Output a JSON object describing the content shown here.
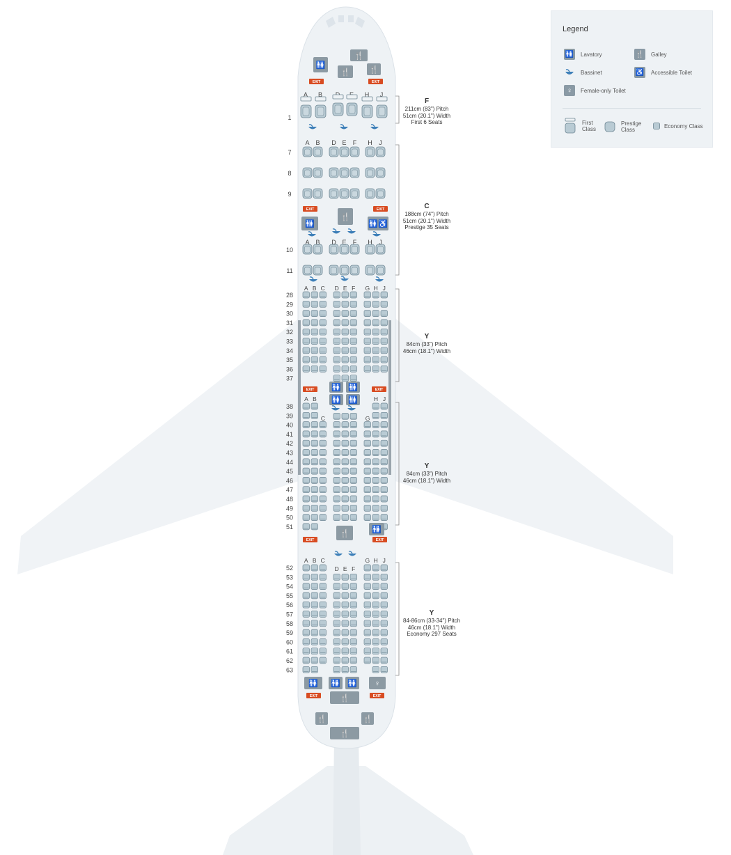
{
  "legend": {
    "title": "Legend",
    "lavatory": "Lavatory",
    "galley": "Galley",
    "bassinet": "Bassinet",
    "accessible_toilet": "Accessible Toilet",
    "female_toilet": "Female-only Toilet",
    "first_class": "First Class",
    "prestige_class": "Prestige Class",
    "economy_class": "Economy Class"
  },
  "icons": {
    "lavatory": "lavatory-icon",
    "galley": "galley-icon",
    "bassinet": "bassinet-icon",
    "accessible": "accessible-toilet-icon",
    "female": "female-toilet-icon",
    "exit": "exit-sign"
  },
  "exit_label": "EXIT",
  "colors": {
    "fuselage": "#f0f3f6",
    "seat": "#b9cbd4",
    "seat_border": "#6e8693",
    "facility": "#8c9aa3",
    "exit": "#d84c22",
    "bassinet": "#3d7fb8"
  },
  "classes": [
    {
      "code": "F",
      "lines": [
        "211cm (83\") Pitch",
        "51cm (20.1\") Width",
        "First 6 Seats"
      ]
    },
    {
      "code": "C",
      "lines": [
        "188cm (74\") Pitch",
        "51cm (20.1\") Width",
        "Prestige 35 Seats"
      ]
    },
    {
      "code": "Y",
      "lines": [
        "84cm (33\") Pitch",
        "46cm (18.1\") Width"
      ]
    },
    {
      "code": "Y",
      "lines": [
        "84cm (33\") Pitch",
        "46cm (18.1\") Width"
      ]
    },
    {
      "code": "Y",
      "lines": [
        "84-86cm (33-34\") Pitch",
        "46cm (18.1\") Width",
        "Economy 297 Seats"
      ]
    }
  ],
  "first": {
    "letters": [
      "A",
      "B",
      "D",
      "E",
      "H",
      "J"
    ],
    "rows": [
      "1"
    ]
  },
  "prestige": {
    "letters": [
      "A",
      "B",
      "D",
      "E",
      "F",
      "H",
      "J"
    ],
    "rows_a": [
      "7",
      "8",
      "9"
    ],
    "rows_b": [
      "10",
      "11"
    ]
  },
  "economy": {
    "letters": [
      "A",
      "B",
      "C",
      "D",
      "E",
      "F",
      "G",
      "H",
      "J"
    ],
    "letters_aft": [
      "A",
      "B",
      "C",
      "D",
      "E",
      "F",
      "G",
      "H",
      "J"
    ],
    "section1_rows": [
      "28",
      "29",
      "30",
      "31",
      "32",
      "33",
      "34",
      "35",
      "36",
      "37"
    ],
    "section2_rows": [
      "38",
      "39",
      "40",
      "41",
      "42",
      "43",
      "44",
      "45",
      "46",
      "47",
      "48",
      "49",
      "50",
      "51"
    ],
    "section3_rows": [
      "52",
      "53",
      "54",
      "55",
      "56",
      "57",
      "58",
      "59",
      "60",
      "61",
      "62",
      "63"
    ]
  }
}
